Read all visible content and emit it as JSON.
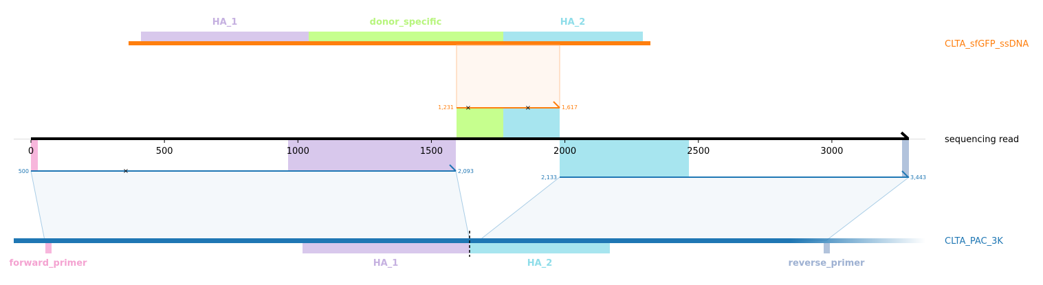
{
  "colors": {
    "donor": "#ff7f0e",
    "target": "#1f77b4",
    "read": "#000000",
    "HA_1": "#d8c8ec",
    "HA_2": "#a7e5ef",
    "donor_specific": "#c6ff8e",
    "forward_primer": "#f7b6dc",
    "reverse_primer": "#b2c3dc",
    "HA_1_label": "#c5b0e0",
    "HA_2_label": "#8edde9",
    "donor_specific_label": "#b8f57e",
    "forward_primer_label": "#f4a3d1",
    "reverse_primer_label": "#9eb1d2"
  },
  "tracks": {
    "donor": {
      "name": "CLTA_sfGFP_ssDNA"
    },
    "read": {
      "name": "sequencing read"
    },
    "target": {
      "name": "CLTA_PAC_3K"
    }
  },
  "read_axis": {
    "ticks": [
      0,
      500,
      1000,
      1500,
      2000,
      2500,
      3000
    ],
    "tick_labels": [
      "0",
      "500",
      "1000",
      "1500",
      "2000",
      "2500",
      "3000"
    ],
    "length": 3290
  },
  "features": {
    "donor": [
      {
        "name": "HA_1",
        "label": "HA_1",
        "color_key": "HA_1"
      },
      {
        "name": "donor_specific",
        "label": "donor_specific",
        "color_key": "donor_specific"
      },
      {
        "name": "HA_2",
        "label": "HA_2",
        "color_key": "HA_2"
      }
    ],
    "target": [
      {
        "name": "forward_primer",
        "label": "forward_primer",
        "color_key": "forward_primer"
      },
      {
        "name": "HA_1",
        "label": "HA_1",
        "color_key": "HA_1"
      },
      {
        "name": "HA_2",
        "label": "HA_2",
        "color_key": "HA_2"
      },
      {
        "name": "reverse_primer",
        "label": "reverse_primer",
        "color_key": "reverse_primer"
      }
    ]
  },
  "alignments": [
    {
      "track": "donor",
      "read_start": 1590,
      "read_end": 1990,
      "ref_start_label": "1,231",
      "ref_end_label": "1,617",
      "mismatch_read_positions": [
        1640,
        1860
      ]
    },
    {
      "track": "target",
      "read_start": 0,
      "read_end": 1590,
      "ref_start_label": "500",
      "ref_end_label": "2,093",
      "mismatch_read_positions": [
        355
      ]
    },
    {
      "track": "target",
      "read_start": 1985,
      "read_end": 3290,
      "ref_start_label": "2,133",
      "ref_end_label": "3,443",
      "mismatch_read_positions": []
    }
  ]
}
